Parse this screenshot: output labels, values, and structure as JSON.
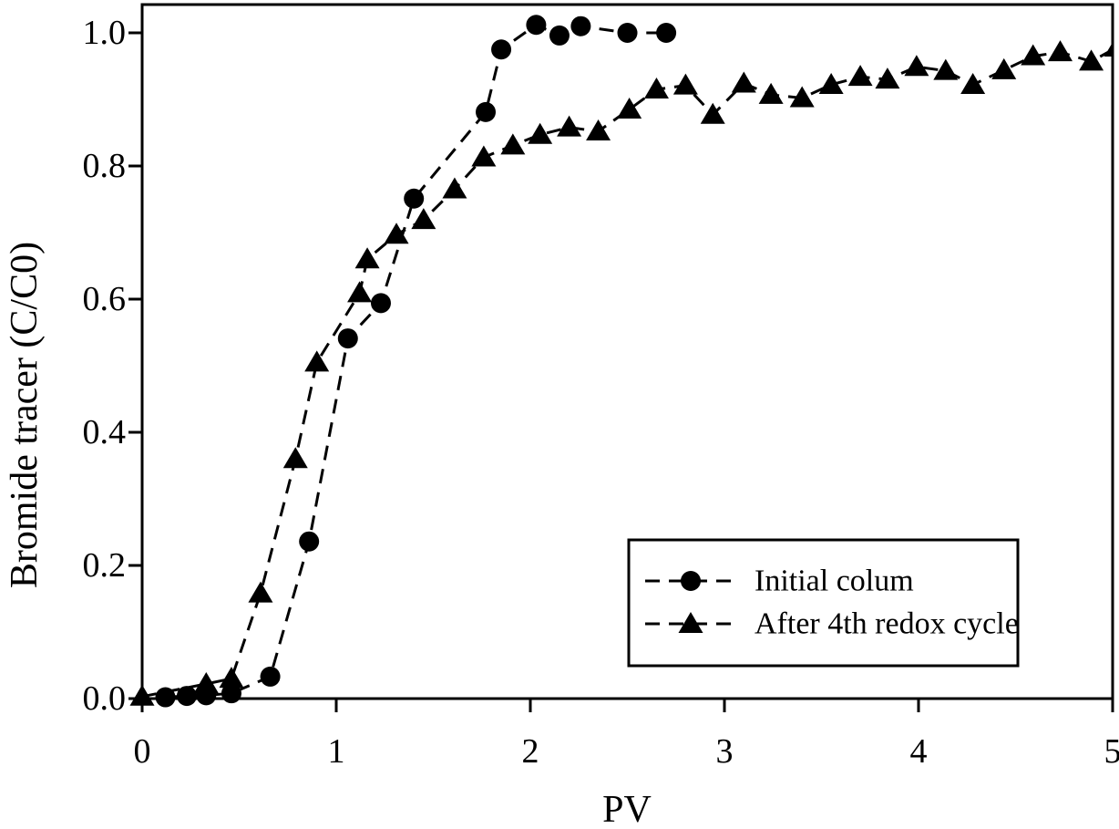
{
  "figure": {
    "background": "#ffffff",
    "ink": "#000000"
  },
  "chart_data": {
    "type": "line",
    "title": "",
    "xlabel": "PV",
    "ylabel": "Bromide tracer (C/C0)",
    "xlim": [
      0,
      5
    ],
    "ylim": [
      0,
      1.04
    ],
    "grid": false,
    "line_style": "dashed",
    "legend_position": "lower right",
    "x_ticks": [
      0,
      1,
      2,
      3,
      4,
      5
    ],
    "x_tick_labels": [
      "0",
      "1",
      "2",
      "3",
      "4",
      "5"
    ],
    "y_ticks": [
      0.0,
      0.2,
      0.4,
      0.6,
      0.8,
      1.0
    ],
    "y_tick_labels": [
      "0.0",
      "0.2",
      "0.4",
      "0.6",
      "0.8",
      "1.0"
    ],
    "series": [
      {
        "name": "Initial colum",
        "marker": "circle",
        "color": "#000000",
        "points": [
          [
            0.12,
            0.002
          ],
          [
            0.23,
            0.004
          ],
          [
            0.33,
            0.005
          ],
          [
            0.46,
            0.008
          ],
          [
            0.66,
            0.033
          ],
          [
            0.86,
            0.236
          ],
          [
            1.06,
            0.541
          ],
          [
            1.23,
            0.594
          ],
          [
            1.4,
            0.751
          ],
          [
            1.77,
            0.881
          ],
          [
            1.85,
            0.975
          ],
          [
            2.03,
            1.012
          ],
          [
            2.15,
            0.996
          ],
          [
            2.26,
            1.01
          ],
          [
            2.5,
            1.0
          ],
          [
            2.7,
            1.0
          ]
        ]
      },
      {
        "name": "After 4th redox cycle",
        "marker": "triangle",
        "color": "#000000",
        "points": [
          [
            0.0,
            0.003
          ],
          [
            0.33,
            0.022
          ],
          [
            0.46,
            0.03
          ],
          [
            0.61,
            0.158
          ],
          [
            0.79,
            0.36
          ],
          [
            0.9,
            0.505
          ],
          [
            1.12,
            0.609
          ],
          [
            1.16,
            0.66
          ],
          [
            1.31,
            0.697
          ],
          [
            1.45,
            0.719
          ],
          [
            1.61,
            0.765
          ],
          [
            1.76,
            0.813
          ],
          [
            1.91,
            0.831
          ],
          [
            2.05,
            0.847
          ],
          [
            2.2,
            0.858
          ],
          [
            2.35,
            0.852
          ],
          [
            2.51,
            0.885
          ],
          [
            2.65,
            0.915
          ],
          [
            2.8,
            0.921
          ],
          [
            2.94,
            0.877
          ],
          [
            3.1,
            0.924
          ],
          [
            3.24,
            0.907
          ],
          [
            3.4,
            0.902
          ],
          [
            3.55,
            0.922
          ],
          [
            3.7,
            0.934
          ],
          [
            3.84,
            0.93
          ],
          [
            3.99,
            0.949
          ],
          [
            4.14,
            0.943
          ],
          [
            4.28,
            0.922
          ],
          [
            4.44,
            0.944
          ],
          [
            4.59,
            0.965
          ],
          [
            4.73,
            0.971
          ],
          [
            4.89,
            0.957
          ],
          [
            5.02,
            0.978
          ]
        ]
      }
    ]
  }
}
